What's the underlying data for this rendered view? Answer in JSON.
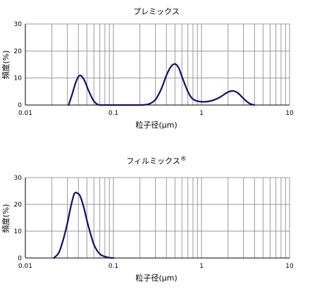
{
  "chart_data": [
    {
      "type": "line",
      "title": "プレミックス",
      "xlabel": "粒子径(μm)",
      "ylabel": "頻度(%)",
      "xscale": "log",
      "xlim": [
        0.01,
        10
      ],
      "ylim": [
        0,
        30
      ],
      "xticks": [
        "0.01",
        "0.1",
        "1",
        "10"
      ],
      "yticks": [
        "0",
        "10",
        "20",
        "30"
      ],
      "grid": true,
      "color": "#10106e",
      "series": [
        {
          "x": [
            0.031,
            0.034,
            0.037,
            0.04,
            0.043,
            0.047,
            0.052,
            0.058,
            0.064,
            0.07,
            0.08,
            0.1,
            0.15,
            0.2,
            0.25,
            0.3,
            0.35,
            0.4,
            0.45,
            0.5,
            0.55,
            0.6,
            0.7,
            0.8,
            1.0,
            1.3,
            1.6,
            2.0,
            2.3,
            2.6,
            3.0,
            3.5,
            4.0
          ],
          "y": [
            0,
            4,
            8,
            10.5,
            10.8,
            9,
            5.5,
            2.2,
            0.5,
            0,
            0,
            0,
            0,
            0,
            0.3,
            2,
            6,
            11,
            14.2,
            15.2,
            13.8,
            10.5,
            5,
            2.2,
            1.2,
            1.6,
            2.8,
            4.8,
            5.2,
            4.4,
            2.4,
            0.6,
            0
          ]
        }
      ]
    },
    {
      "type": "line",
      "title": "フィルミックス",
      "title_mark": "®",
      "xlabel": "粒子径(μm)",
      "ylabel": "頻度(%)",
      "xscale": "log",
      "xlim": [
        0.01,
        10
      ],
      "ylim": [
        0,
        30
      ],
      "xticks": [
        "0.01",
        "0.1",
        "1",
        "10"
      ],
      "yticks": [
        "0",
        "10",
        "20",
        "30"
      ],
      "grid": true,
      "color": "#10106e",
      "series": [
        {
          "x": [
            0.021,
            0.024,
            0.027,
            0.03,
            0.033,
            0.036,
            0.039,
            0.042,
            0.046,
            0.05,
            0.055,
            0.06,
            0.066,
            0.072,
            0.08,
            0.09,
            0.1
          ],
          "y": [
            0,
            2,
            7,
            13,
            19.5,
            24,
            24.2,
            23,
            19,
            14,
            9,
            5,
            2.5,
            1.2,
            0.5,
            0.1,
            0
          ]
        }
      ]
    }
  ]
}
